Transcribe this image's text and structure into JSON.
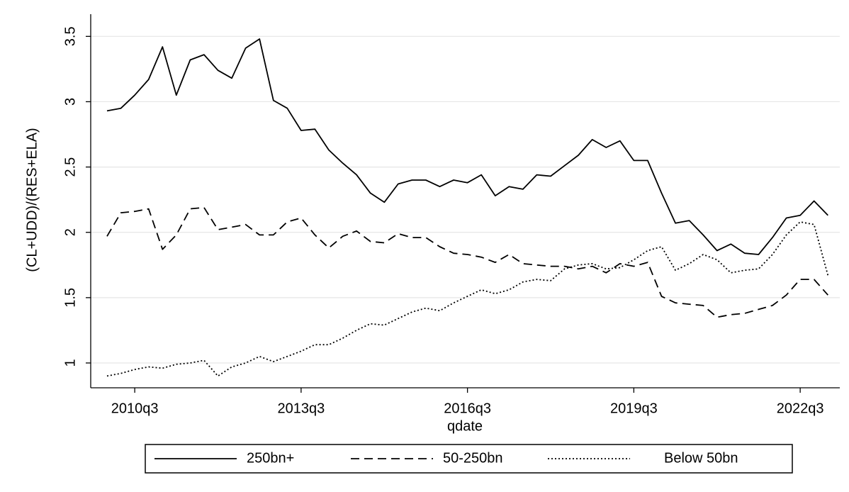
{
  "chart_data": {
    "type": "line",
    "x_label": "qdate",
    "y_label": "(CL+UDD)/(RES+ELA)",
    "categories": [
      null,
      null,
      "2010q3",
      null,
      null,
      null,
      null,
      null,
      null,
      null,
      null,
      null,
      null,
      null,
      "2013q3",
      null,
      null,
      null,
      null,
      null,
      null,
      null,
      null,
      null,
      null,
      null,
      "2016q3",
      null,
      null,
      null,
      null,
      null,
      null,
      null,
      null,
      null,
      null,
      null,
      "2019q3",
      null,
      null,
      null,
      null,
      null,
      null,
      null,
      null,
      null,
      null,
      null,
      "2022q3",
      null,
      null
    ],
    "series": [
      {
        "name": "250bn+",
        "color": "#000000",
        "line_style": "solid",
        "values": [
          2.93,
          2.95,
          3.05,
          3.17,
          3.42,
          3.05,
          3.32,
          3.36,
          3.24,
          3.18,
          3.41,
          3.48,
          3.01,
          2.95,
          2.78,
          2.79,
          2.63,
          2.53,
          2.44,
          2.3,
          2.23,
          2.37,
          2.4,
          2.4,
          2.35,
          2.4,
          2.38,
          2.44,
          2.28,
          2.35,
          2.33,
          2.44,
          2.43,
          2.51,
          2.59,
          2.71,
          2.65,
          2.7,
          2.55,
          2.55,
          2.3,
          2.07,
          2.09,
          1.98,
          1.86,
          1.91,
          1.84,
          1.83,
          1.96,
          2.11,
          2.13,
          2.24,
          2.13
        ]
      },
      {
        "name": "50-250bn",
        "color": "#000000",
        "line_style": "dashed",
        "values": [
          1.97,
          2.15,
          2.16,
          2.18,
          1.87,
          1.98,
          2.18,
          2.19,
          2.02,
          2.04,
          2.06,
          1.98,
          1.98,
          2.08,
          2.11,
          1.98,
          1.88,
          1.97,
          2.01,
          1.93,
          1.92,
          1.99,
          1.96,
          1.96,
          1.89,
          1.84,
          1.83,
          1.81,
          1.77,
          1.83,
          1.76,
          1.75,
          1.74,
          1.74,
          1.72,
          1.74,
          1.69,
          1.76,
          1.74,
          1.77,
          1.51,
          1.46,
          1.45,
          1.44,
          1.35,
          1.37,
          1.38,
          1.41,
          1.44,
          1.52,
          1.64,
          1.64,
          1.52
        ]
      },
      {
        "name": "Below 50bn",
        "color": "#000000",
        "line_style": "dotted",
        "values": [
          0.9,
          0.92,
          0.95,
          0.97,
          0.96,
          0.99,
          1.0,
          1.02,
          0.9,
          0.97,
          1.0,
          1.05,
          1.01,
          1.05,
          1.09,
          1.14,
          1.14,
          1.19,
          1.25,
          1.3,
          1.29,
          1.34,
          1.39,
          1.42,
          1.4,
          1.46,
          1.51,
          1.56,
          1.53,
          1.56,
          1.62,
          1.64,
          1.63,
          1.72,
          1.75,
          1.76,
          1.72,
          1.73,
          1.79,
          1.86,
          1.89,
          1.71,
          1.76,
          1.83,
          1.79,
          1.69,
          1.71,
          1.72,
          1.83,
          1.98,
          2.08,
          2.06,
          1.67
        ]
      }
    ],
    "ylim": [
      0.81,
      3.67
    ],
    "yticks": [
      1,
      1.5,
      2,
      2.5,
      3,
      3.5
    ],
    "grid": true,
    "legend": "bottom"
  }
}
